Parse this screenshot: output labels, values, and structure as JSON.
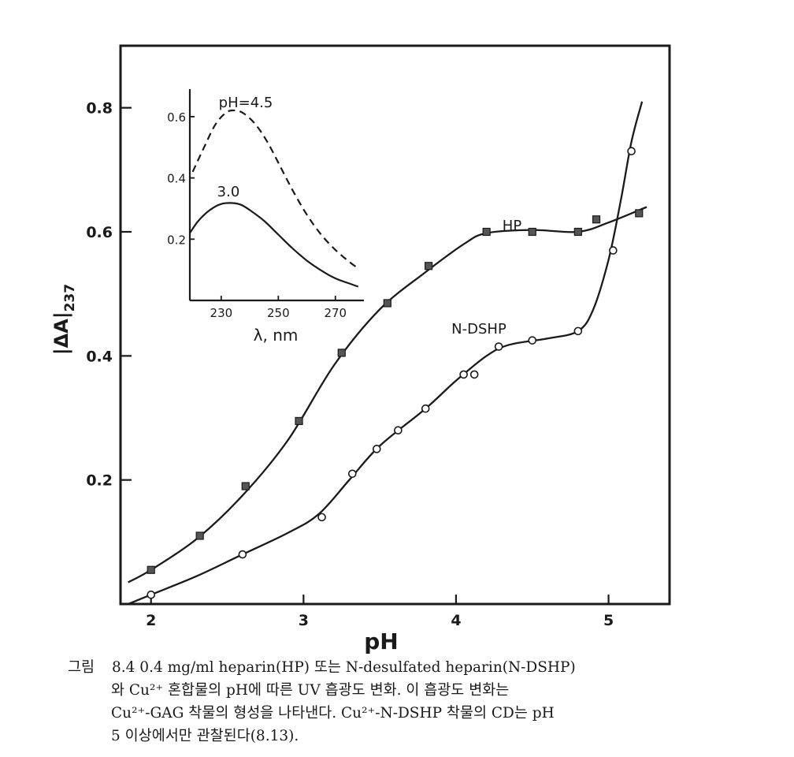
{
  "chart_data": [
    {
      "type": "scatter",
      "xlabel": "pH",
      "ylabel": "|ΔA|",
      "ylabel_sub": "237",
      "xlim": [
        1.8,
        5.4
      ],
      "ylim": [
        0.0,
        0.9
      ],
      "x_ticks": [
        2,
        3,
        4,
        5
      ],
      "x_tick_labels": [
        "2",
        "3",
        "4",
        "5"
      ],
      "y_ticks": [
        0.2,
        0.4,
        0.6,
        0.8
      ],
      "y_tick_labels": [
        "0.2",
        "0.4",
        "0.6",
        "0.8"
      ],
      "grid": false,
      "series": [
        {
          "name": "HP",
          "marker": "square",
          "x": [
            2.0,
            2.32,
            2.62,
            2.97,
            3.25,
            3.55,
            3.82,
            4.2,
            4.5,
            4.8,
            4.92,
            5.2
          ],
          "y": [
            0.055,
            0.11,
            0.19,
            0.295,
            0.405,
            0.485,
            0.545,
            0.6,
            0.6,
            0.6,
            0.62,
            0.63
          ],
          "curve_x": [
            1.85,
            2.0,
            2.3,
            2.6,
            2.9,
            3.2,
            3.5,
            3.8,
            4.05,
            4.2,
            4.5,
            4.8,
            5.0,
            5.25
          ],
          "curve_y": [
            0.035,
            0.055,
            0.105,
            0.175,
            0.265,
            0.385,
            0.475,
            0.535,
            0.58,
            0.598,
            0.603,
            0.6,
            0.615,
            0.64
          ]
        },
        {
          "name": "N-DSHP",
          "marker": "circle",
          "x": [
            2.0,
            2.6,
            3.12,
            3.32,
            3.48,
            3.62,
            3.8,
            4.05,
            4.12,
            4.28,
            4.5,
            4.8,
            5.03,
            5.15
          ],
          "y": [
            0.015,
            0.08,
            0.14,
            0.21,
            0.25,
            0.28,
            0.315,
            0.37,
            0.37,
            0.415,
            0.425,
            0.44,
            0.57,
            0.73
          ],
          "curve_x": [
            1.85,
            2.0,
            2.3,
            2.6,
            2.9,
            3.1,
            3.3,
            3.5,
            3.8,
            4.0,
            4.2,
            4.35,
            4.6,
            4.8,
            4.9,
            5.0,
            5.08,
            5.15,
            5.22
          ],
          "curve_y": [
            0.0,
            0.015,
            0.045,
            0.08,
            0.115,
            0.145,
            0.2,
            0.255,
            0.315,
            0.36,
            0.4,
            0.418,
            0.428,
            0.44,
            0.475,
            0.555,
            0.65,
            0.745,
            0.81
          ]
        }
      ]
    },
    {
      "type": "line",
      "xlabel": "λ, nm",
      "xlim": [
        219,
        280
      ],
      "ylim": [
        0.0,
        0.69
      ],
      "x_ticks": [
        230,
        250,
        270
      ],
      "x_tick_labels": [
        "230",
        "250",
        "270"
      ],
      "y_ticks": [
        0.2,
        0.4,
        0.6
      ],
      "y_tick_labels": [
        "0.2",
        "0.4",
        "0.6"
      ],
      "grid": false,
      "series": [
        {
          "name": "pH=4.5",
          "style": "dashed",
          "x": [
            220,
            224,
            228,
            232,
            235,
            238,
            242,
            246,
            250,
            255,
            260,
            265,
            270,
            275,
            278
          ],
          "y": [
            0.42,
            0.5,
            0.575,
            0.615,
            0.62,
            0.61,
            0.575,
            0.52,
            0.45,
            0.36,
            0.28,
            0.215,
            0.165,
            0.125,
            0.105
          ]
        },
        {
          "name": "3.0",
          "style": "solid",
          "x": [
            219,
            222,
            226,
            230,
            234,
            237,
            240,
            245,
            250,
            255,
            260,
            265,
            270,
            275,
            278
          ],
          "y": [
            0.22,
            0.26,
            0.295,
            0.315,
            0.318,
            0.312,
            0.295,
            0.26,
            0.215,
            0.17,
            0.13,
            0.098,
            0.072,
            0.055,
            0.045
          ]
        }
      ]
    }
  ],
  "caption": {
    "lead": "그림",
    "line1": "8.4   0.4 mg/ml heparin(HP) 또는 N-desulfated heparin(N-DSHP)",
    "line2": "와 Cu²⁺ 혼합물의 pH에 따른 UV 흡광도 변화. 이 흡광도 변화는",
    "line3": "Cu²⁺-GAG 착물의 형성을 나타낸다. Cu²⁺-N-DSHP 착물의 CD는 pH",
    "line4": "5 이상에서만 관찰된다(8.13)."
  }
}
